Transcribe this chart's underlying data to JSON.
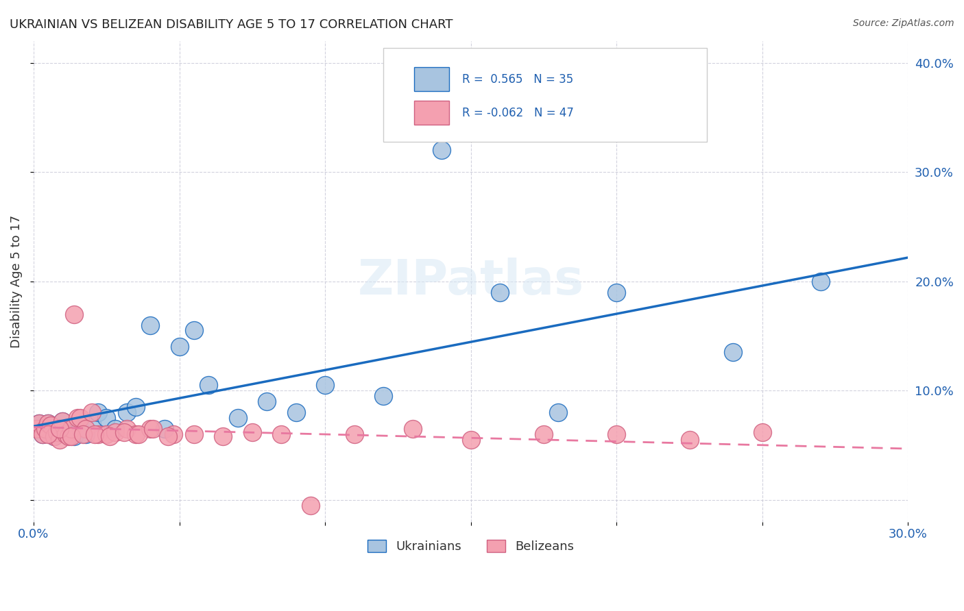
{
  "title": "UKRAINIAN VS BELIZEAN DISABILITY AGE 5 TO 17 CORRELATION CHART",
  "source": "Source: ZipAtlas.com",
  "ylabel_label": "Disability Age 5 to 17",
  "xlim": [
    0.0,
    0.3
  ],
  "ylim": [
    -0.02,
    0.42
  ],
  "R_ukrainian": 0.565,
  "N_ukrainian": 35,
  "R_belizean": -0.062,
  "N_belizean": 47,
  "ukrainian_color": "#a8c4e0",
  "belizean_color": "#f4a0b0",
  "line_ukrainian_color": "#1a6bbf",
  "line_belizean_color": "#e878a0",
  "watermark": "ZIPatlas",
  "ukrainians_x": [
    0.001,
    0.002,
    0.003,
    0.004,
    0.005,
    0.006,
    0.007,
    0.008,
    0.01,
    0.012,
    0.014,
    0.016,
    0.018,
    0.02,
    0.022,
    0.025,
    0.028,
    0.032,
    0.035,
    0.04,
    0.045,
    0.05,
    0.055,
    0.06,
    0.07,
    0.08,
    0.09,
    0.1,
    0.12,
    0.14,
    0.16,
    0.18,
    0.2,
    0.24,
    0.27
  ],
  "ukrainians_y": [
    0.065,
    0.07,
    0.06,
    0.065,
    0.07,
    0.068,
    0.058,
    0.062,
    0.072,
    0.06,
    0.058,
    0.065,
    0.06,
    0.07,
    0.08,
    0.075,
    0.065,
    0.08,
    0.085,
    0.16,
    0.065,
    0.14,
    0.155,
    0.105,
    0.075,
    0.09,
    0.08,
    0.105,
    0.095,
    0.32,
    0.19,
    0.08,
    0.19,
    0.135,
    0.2
  ],
  "belizeans_x": [
    0.001,
    0.002,
    0.003,
    0.004,
    0.005,
    0.006,
    0.007,
    0.008,
    0.009,
    0.01,
    0.011,
    0.012,
    0.013,
    0.014,
    0.015,
    0.016,
    0.018,
    0.02,
    0.022,
    0.025,
    0.028,
    0.032,
    0.035,
    0.04,
    0.048,
    0.055,
    0.065,
    0.075,
    0.085,
    0.095,
    0.11,
    0.13,
    0.15,
    0.175,
    0.2,
    0.225,
    0.25,
    0.005,
    0.009,
    0.013,
    0.017,
    0.021,
    0.026,
    0.031,
    0.036,
    0.041,
    0.046
  ],
  "belizeans_y": [
    0.065,
    0.07,
    0.06,
    0.065,
    0.07,
    0.068,
    0.058,
    0.062,
    0.055,
    0.072,
    0.06,
    0.058,
    0.065,
    0.17,
    0.075,
    0.075,
    0.065,
    0.08,
    0.06,
    0.06,
    0.062,
    0.065,
    0.06,
    0.065,
    0.06,
    0.06,
    0.058,
    0.062,
    0.06,
    -0.005,
    0.06,
    0.065,
    0.055,
    0.06,
    0.06,
    0.055,
    0.062,
    0.06,
    0.065,
    0.058,
    0.06,
    0.06,
    0.058,
    0.062,
    0.06,
    0.065,
    0.058
  ]
}
